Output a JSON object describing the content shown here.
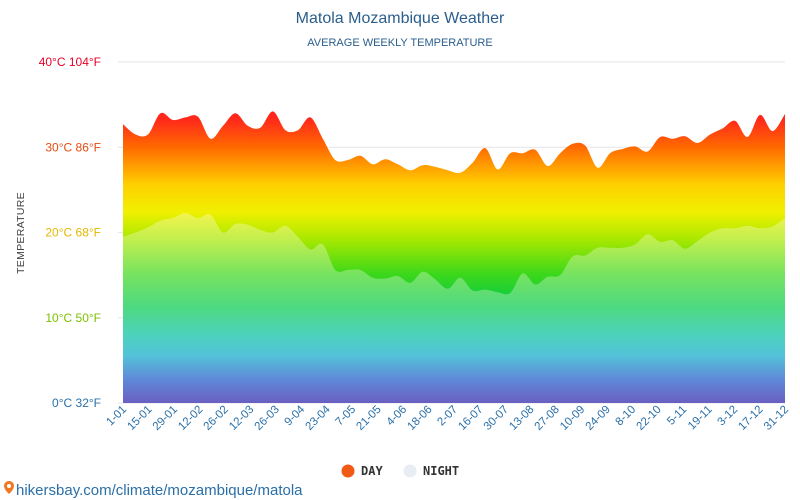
{
  "chart_data": {
    "type": "area",
    "title": "Matola Mozambique Weather",
    "subtitle": "AVERAGE WEEKLY TEMPERATURE",
    "ylabel": "TEMPERATURE",
    "ylim": [
      0,
      40
    ],
    "y_ticks": [
      {
        "value": 0,
        "label": "0°C 32°F",
        "color": "#2a6fa8"
      },
      {
        "value": 10,
        "label": "10°C 50°F",
        "color": "#7cc000"
      },
      {
        "value": 20,
        "label": "20°C 68°F",
        "color": "#e6b800"
      },
      {
        "value": 30,
        "label": "30°C 86°F",
        "color": "#e84a10"
      },
      {
        "value": 40,
        "label": "40°C 104°F",
        "color": "#e8002a"
      }
    ],
    "x_tick_labels": [
      "1-01",
      "15-01",
      "29-01",
      "12-02",
      "26-02",
      "12-03",
      "26-03",
      "9-04",
      "23-04",
      "7-05",
      "21-05",
      "4-06",
      "18-06",
      "2-07",
      "16-07",
      "30-07",
      "13-08",
      "27-08",
      "10-09",
      "24-09",
      "8-10",
      "22-10",
      "5-11",
      "19-11",
      "3-12",
      "17-12",
      "31-12"
    ],
    "grid": true,
    "legend": "bottom-center",
    "series": [
      {
        "name": "DAY",
        "color": "#f05a14",
        "values": [
          32.7,
          31.5,
          31.5,
          34.0,
          33.2,
          33.5,
          33.6,
          31.0,
          32.5,
          34.0,
          32.5,
          32.3,
          34.2,
          32.0,
          32.0,
          33.5,
          31.0,
          28.5,
          28.5,
          29.0,
          28.0,
          28.6,
          28.0,
          27.3,
          27.9,
          27.7,
          27.3,
          27.0,
          28.2,
          29.9,
          27.4,
          29.3,
          29.3,
          29.7,
          27.8,
          29.3,
          30.4,
          30.2,
          27.6,
          29.3,
          29.8,
          30.1,
          29.5,
          31.2,
          31.0,
          31.3,
          30.5,
          31.5,
          32.2,
          33.1,
          31.2,
          33.8,
          31.9,
          33.9
        ]
      },
      {
        "name": "NIGHT",
        "color": "#e8edf3",
        "values": [
          19.5,
          20.0,
          20.6,
          21.4,
          21.7,
          22.3,
          21.7,
          22.1,
          20.0,
          21.0,
          20.9,
          20.3,
          20.0,
          20.8,
          19.5,
          18.0,
          18.6,
          15.6,
          15.6,
          15.6,
          14.7,
          14.6,
          14.9,
          14.1,
          15.4,
          14.5,
          13.4,
          14.7,
          13.2,
          13.3,
          13.0,
          12.9,
          15.2,
          13.9,
          14.8,
          15.0,
          17.2,
          17.3,
          18.2,
          18.2,
          18.2,
          18.6,
          19.8,
          18.9,
          19.1,
          18.1,
          19.0,
          20.0,
          20.5,
          20.5,
          20.8,
          20.5,
          20.7,
          21.7
        ]
      }
    ]
  },
  "footer": {
    "credit": "hikersbay.com/climate/mozambique/matola"
  },
  "colors": {
    "title": "#2a5e8c",
    "axis_text": "#2a6fa8"
  }
}
